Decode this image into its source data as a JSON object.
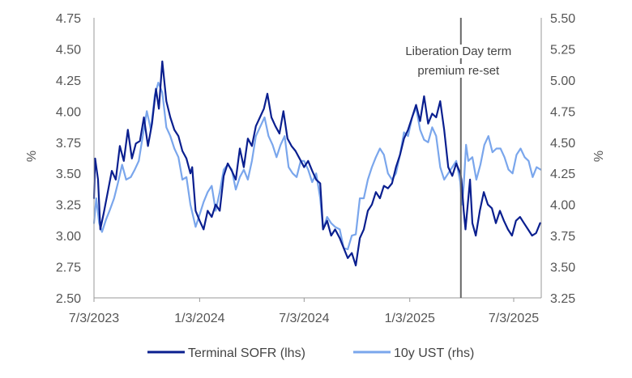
{
  "chart_data": {
    "type": "line",
    "title": "",
    "xlabel": "",
    "ylabel_left": "%",
    "ylabel_right": "%",
    "x_ticks": [
      "7/3/2023",
      "1/3/2024",
      "7/3/2024",
      "1/3/2025",
      "7/3/2025"
    ],
    "x_tick_dates": [
      "2023-07-03",
      "2024-01-03",
      "2024-07-03",
      "2025-01-03",
      "2025-07-03"
    ],
    "x_range": [
      "2023-07-03",
      "2025-08-20"
    ],
    "y_left": {
      "min": 2.5,
      "max": 4.75,
      "ticks": [
        "2.50",
        "2.75",
        "3.00",
        "3.25",
        "3.50",
        "3.75",
        "4.00",
        "4.25",
        "4.50",
        "4.75"
      ]
    },
    "y_right": {
      "min": 3.25,
      "max": 5.5,
      "ticks": [
        "3.25",
        "3.50",
        "3.75",
        "4.00",
        "4.25",
        "4.50",
        "4.75",
        "5.00",
        "5.25",
        "5.50"
      ]
    },
    "grid": false,
    "legend_position": "bottom",
    "annotation": {
      "date": "2025-04-02",
      "lines": [
        "Liberation Day term",
        "premium re-set"
      ],
      "color": "#666666"
    },
    "series": [
      {
        "name": "Terminal SOFR (lhs)",
        "axis": "left",
        "color": "#0a1f8f",
        "points": [
          [
            "2023-07-03",
            3.3
          ],
          [
            "2023-07-05",
            3.62
          ],
          [
            "2023-07-10",
            3.45
          ],
          [
            "2023-07-14",
            3.05
          ],
          [
            "2023-07-20",
            3.18
          ],
          [
            "2023-07-27",
            3.35
          ],
          [
            "2023-08-03",
            3.52
          ],
          [
            "2023-08-10",
            3.45
          ],
          [
            "2023-08-17",
            3.72
          ],
          [
            "2023-08-24",
            3.6
          ],
          [
            "2023-08-31",
            3.85
          ],
          [
            "2023-09-07",
            3.62
          ],
          [
            "2023-09-14",
            3.74
          ],
          [
            "2023-09-21",
            3.76
          ],
          [
            "2023-09-28",
            3.95
          ],
          [
            "2023-10-05",
            3.72
          ],
          [
            "2023-10-12",
            3.9
          ],
          [
            "2023-10-19",
            4.18
          ],
          [
            "2023-10-24",
            4.02
          ],
          [
            "2023-10-30",
            4.4
          ],
          [
            "2023-11-06",
            4.08
          ],
          [
            "2023-11-13",
            3.95
          ],
          [
            "2023-11-20",
            3.85
          ],
          [
            "2023-11-27",
            3.8
          ],
          [
            "2023-12-04",
            3.68
          ],
          [
            "2023-12-11",
            3.62
          ],
          [
            "2023-12-18",
            3.5
          ],
          [
            "2023-12-21",
            3.55
          ],
          [
            "2023-12-27",
            3.2
          ],
          [
            "2024-01-03",
            3.12
          ],
          [
            "2024-01-10",
            3.05
          ],
          [
            "2024-01-17",
            3.2
          ],
          [
            "2024-01-24",
            3.15
          ],
          [
            "2024-01-31",
            3.25
          ],
          [
            "2024-02-07",
            3.2
          ],
          [
            "2024-02-14",
            3.48
          ],
          [
            "2024-02-21",
            3.58
          ],
          [
            "2024-02-28",
            3.52
          ],
          [
            "2024-03-06",
            3.45
          ],
          [
            "2024-03-13",
            3.7
          ],
          [
            "2024-03-20",
            3.55
          ],
          [
            "2024-03-27",
            3.78
          ],
          [
            "2024-04-03",
            3.72
          ],
          [
            "2024-04-10",
            3.88
          ],
          [
            "2024-04-17",
            3.95
          ],
          [
            "2024-04-24",
            4.02
          ],
          [
            "2024-04-30",
            4.14
          ],
          [
            "2024-05-07",
            3.95
          ],
          [
            "2024-05-14",
            3.88
          ],
          [
            "2024-05-21",
            3.82
          ],
          [
            "2024-05-28",
            4.0
          ],
          [
            "2024-06-04",
            3.78
          ],
          [
            "2024-06-11",
            3.72
          ],
          [
            "2024-06-18",
            3.68
          ],
          [
            "2024-06-25",
            3.62
          ],
          [
            "2024-07-03",
            3.55
          ],
          [
            "2024-07-10",
            3.6
          ],
          [
            "2024-07-17",
            3.52
          ],
          [
            "2024-07-24",
            3.45
          ],
          [
            "2024-07-31",
            3.42
          ],
          [
            "2024-08-05",
            3.05
          ],
          [
            "2024-08-12",
            3.12
          ],
          [
            "2024-08-19",
            3.0
          ],
          [
            "2024-08-26",
            3.05
          ],
          [
            "2024-09-03",
            2.98
          ],
          [
            "2024-09-10",
            2.9
          ],
          [
            "2024-09-17",
            2.82
          ],
          [
            "2024-09-24",
            2.86
          ],
          [
            "2024-10-01",
            2.76
          ],
          [
            "2024-10-08",
            2.98
          ],
          [
            "2024-10-15",
            3.05
          ],
          [
            "2024-10-22",
            3.2
          ],
          [
            "2024-10-29",
            3.25
          ],
          [
            "2024-11-05",
            3.35
          ],
          [
            "2024-11-12",
            3.3
          ],
          [
            "2024-11-19",
            3.4
          ],
          [
            "2024-11-26",
            3.38
          ],
          [
            "2024-12-03",
            3.42
          ],
          [
            "2024-12-10",
            3.55
          ],
          [
            "2024-12-17",
            3.65
          ],
          [
            "2024-12-24",
            3.78
          ],
          [
            "2024-12-31",
            3.85
          ],
          [
            "2025-01-07",
            3.95
          ],
          [
            "2025-01-14",
            4.05
          ],
          [
            "2025-01-21",
            3.92
          ],
          [
            "2025-01-28",
            4.12
          ],
          [
            "2025-02-04",
            3.9
          ],
          [
            "2025-02-11",
            3.98
          ],
          [
            "2025-02-18",
            3.95
          ],
          [
            "2025-02-25",
            4.08
          ],
          [
            "2025-03-04",
            3.85
          ],
          [
            "2025-03-11",
            3.55
          ],
          [
            "2025-03-18",
            3.48
          ],
          [
            "2025-03-25",
            3.58
          ],
          [
            "2025-04-01",
            3.5
          ],
          [
            "2025-04-03",
            3.45
          ],
          [
            "2025-04-07",
            3.2
          ],
          [
            "2025-04-10",
            3.05
          ],
          [
            "2025-04-14",
            3.25
          ],
          [
            "2025-04-18",
            3.45
          ],
          [
            "2025-04-22",
            3.1
          ],
          [
            "2025-04-28",
            3.0
          ],
          [
            "2025-05-05",
            3.2
          ],
          [
            "2025-05-12",
            3.35
          ],
          [
            "2025-05-19",
            3.25
          ],
          [
            "2025-05-26",
            3.22
          ],
          [
            "2025-06-02",
            3.1
          ],
          [
            "2025-06-09",
            3.2
          ],
          [
            "2025-06-16",
            3.12
          ],
          [
            "2025-06-23",
            3.05
          ],
          [
            "2025-06-30",
            3.0
          ],
          [
            "2025-07-07",
            3.12
          ],
          [
            "2025-07-14",
            3.15
          ],
          [
            "2025-07-21",
            3.1
          ],
          [
            "2025-07-28",
            3.05
          ],
          [
            "2025-08-04",
            3.0
          ],
          [
            "2025-08-11",
            3.02
          ],
          [
            "2025-08-18",
            3.1
          ]
        ]
      },
      {
        "name": "10y UST (rhs)",
        "axis": "right",
        "color": "#7aa6ec",
        "points": [
          [
            "2023-07-03",
            3.85
          ],
          [
            "2023-07-07",
            4.05
          ],
          [
            "2023-07-12",
            3.85
          ],
          [
            "2023-07-17",
            3.78
          ],
          [
            "2023-07-24",
            3.88
          ],
          [
            "2023-07-31",
            3.96
          ],
          [
            "2023-08-07",
            4.05
          ],
          [
            "2023-08-14",
            4.18
          ],
          [
            "2023-08-21",
            4.32
          ],
          [
            "2023-08-28",
            4.2
          ],
          [
            "2023-09-05",
            4.22
          ],
          [
            "2023-09-12",
            4.28
          ],
          [
            "2023-09-19",
            4.35
          ],
          [
            "2023-09-26",
            4.55
          ],
          [
            "2023-10-03",
            4.75
          ],
          [
            "2023-10-10",
            4.6
          ],
          [
            "2023-10-17",
            4.88
          ],
          [
            "2023-10-23",
            4.98
          ],
          [
            "2023-10-30",
            4.9
          ],
          [
            "2023-11-06",
            4.62
          ],
          [
            "2023-11-13",
            4.55
          ],
          [
            "2023-11-20",
            4.45
          ],
          [
            "2023-11-27",
            4.38
          ],
          [
            "2023-12-04",
            4.2
          ],
          [
            "2023-12-11",
            4.22
          ],
          [
            "2023-12-18",
            4.0
          ],
          [
            "2023-12-27",
            3.82
          ],
          [
            "2024-01-03",
            3.92
          ],
          [
            "2024-01-10",
            4.02
          ],
          [
            "2024-01-17",
            4.1
          ],
          [
            "2024-01-24",
            4.15
          ],
          [
            "2024-01-31",
            3.95
          ],
          [
            "2024-02-07",
            4.1
          ],
          [
            "2024-02-14",
            4.28
          ],
          [
            "2024-02-21",
            4.32
          ],
          [
            "2024-02-28",
            4.28
          ],
          [
            "2024-03-06",
            4.12
          ],
          [
            "2024-03-13",
            4.22
          ],
          [
            "2024-03-20",
            4.28
          ],
          [
            "2024-03-27",
            4.2
          ],
          [
            "2024-04-03",
            4.35
          ],
          [
            "2024-04-10",
            4.55
          ],
          [
            "2024-04-17",
            4.62
          ],
          [
            "2024-04-25",
            4.7
          ],
          [
            "2024-05-02",
            4.55
          ],
          [
            "2024-05-09",
            4.48
          ],
          [
            "2024-05-16",
            4.38
          ],
          [
            "2024-05-23",
            4.48
          ],
          [
            "2024-05-30",
            4.55
          ],
          [
            "2024-06-06",
            4.3
          ],
          [
            "2024-06-13",
            4.25
          ],
          [
            "2024-06-20",
            4.22
          ],
          [
            "2024-06-27",
            4.35
          ],
          [
            "2024-07-03",
            4.35
          ],
          [
            "2024-07-10",
            4.28
          ],
          [
            "2024-07-17",
            4.18
          ],
          [
            "2024-07-24",
            4.25
          ],
          [
            "2024-07-31",
            4.05
          ],
          [
            "2024-08-05",
            3.8
          ],
          [
            "2024-08-12",
            3.9
          ],
          [
            "2024-08-19",
            3.85
          ],
          [
            "2024-08-26",
            3.82
          ],
          [
            "2024-09-03",
            3.8
          ],
          [
            "2024-09-10",
            3.65
          ],
          [
            "2024-09-17",
            3.64
          ],
          [
            "2024-09-24",
            3.75
          ],
          [
            "2024-10-01",
            3.76
          ],
          [
            "2024-10-08",
            4.05
          ],
          [
            "2024-10-15",
            4.05
          ],
          [
            "2024-10-22",
            4.2
          ],
          [
            "2024-10-29",
            4.3
          ],
          [
            "2024-11-05",
            4.38
          ],
          [
            "2024-11-12",
            4.45
          ],
          [
            "2024-11-19",
            4.4
          ],
          [
            "2024-11-26",
            4.25
          ],
          [
            "2024-12-03",
            4.2
          ],
          [
            "2024-12-10",
            4.25
          ],
          [
            "2024-12-17",
            4.4
          ],
          [
            "2024-12-24",
            4.58
          ],
          [
            "2024-12-31",
            4.55
          ],
          [
            "2025-01-07",
            4.7
          ],
          [
            "2025-01-14",
            4.78
          ],
          [
            "2025-01-21",
            4.6
          ],
          [
            "2025-01-28",
            4.52
          ],
          [
            "2025-02-04",
            4.5
          ],
          [
            "2025-02-11",
            4.62
          ],
          [
            "2025-02-18",
            4.55
          ],
          [
            "2025-02-25",
            4.3
          ],
          [
            "2025-03-04",
            4.2
          ],
          [
            "2025-03-11",
            4.25
          ],
          [
            "2025-03-18",
            4.3
          ],
          [
            "2025-03-25",
            4.35
          ],
          [
            "2025-04-01",
            4.18
          ],
          [
            "2025-04-04",
            4.0
          ],
          [
            "2025-04-07",
            4.15
          ],
          [
            "2025-04-11",
            4.48
          ],
          [
            "2025-04-15",
            4.35
          ],
          [
            "2025-04-22",
            4.38
          ],
          [
            "2025-04-29",
            4.2
          ],
          [
            "2025-05-06",
            4.32
          ],
          [
            "2025-05-13",
            4.48
          ],
          [
            "2025-05-20",
            4.55
          ],
          [
            "2025-05-27",
            4.42
          ],
          [
            "2025-06-03",
            4.45
          ],
          [
            "2025-06-10",
            4.45
          ],
          [
            "2025-06-17",
            4.38
          ],
          [
            "2025-06-24",
            4.28
          ],
          [
            "2025-07-01",
            4.25
          ],
          [
            "2025-07-08",
            4.4
          ],
          [
            "2025-07-15",
            4.45
          ],
          [
            "2025-07-22",
            4.38
          ],
          [
            "2025-07-29",
            4.35
          ],
          [
            "2025-08-05",
            4.22
          ],
          [
            "2025-08-12",
            4.3
          ],
          [
            "2025-08-19",
            4.28
          ]
        ]
      }
    ]
  }
}
